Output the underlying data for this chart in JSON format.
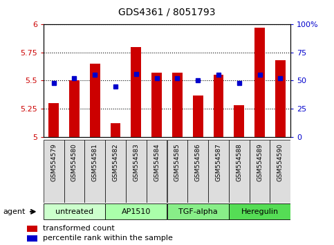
{
  "title": "GDS4361 / 8051793",
  "samples": [
    "GSM554579",
    "GSM554580",
    "GSM554581",
    "GSM554582",
    "GSM554583",
    "GSM554584",
    "GSM554585",
    "GSM554586",
    "GSM554587",
    "GSM554588",
    "GSM554589",
    "GSM554590"
  ],
  "red_values": [
    5.3,
    5.5,
    5.65,
    5.12,
    5.8,
    5.57,
    5.57,
    5.37,
    5.55,
    5.28,
    5.97,
    5.68
  ],
  "blue_values": [
    48,
    52,
    55,
    45,
    56,
    52,
    52,
    50,
    55,
    48,
    55,
    52
  ],
  "ylim_left": [
    5.0,
    6.0
  ],
  "ylim_right": [
    0,
    100
  ],
  "yticks_left": [
    5.0,
    5.25,
    5.5,
    5.75,
    6.0
  ],
  "yticks_right": [
    0,
    25,
    50,
    75,
    100
  ],
  "ytick_labels_left": [
    "5",
    "5.25",
    "5.5",
    "5.75",
    "6"
  ],
  "ytick_labels_right": [
    "0",
    "25",
    "50",
    "75",
    "100%"
  ],
  "groups": [
    {
      "label": "untreated",
      "indices": [
        0,
        1,
        2
      ],
      "color": "#ccffcc"
    },
    {
      "label": "AP1510",
      "indices": [
        3,
        4,
        5
      ],
      "color": "#aaffaa"
    },
    {
      "label": "TGF-alpha",
      "indices": [
        6,
        7,
        8
      ],
      "color": "#88ee88"
    },
    {
      "label": "Heregulin",
      "indices": [
        9,
        10,
        11
      ],
      "color": "#55dd55"
    }
  ],
  "bar_color": "#cc0000",
  "dot_color": "#0000cc",
  "grid_color": "#000000",
  "bg_color": "#ffffff",
  "left_tick_color": "#cc0000",
  "right_tick_color": "#0000cc",
  "bar_width": 0.5,
  "legend_labels": [
    "transformed count",
    "percentile rank within the sample"
  ],
  "xtick_bg": "#dddddd"
}
